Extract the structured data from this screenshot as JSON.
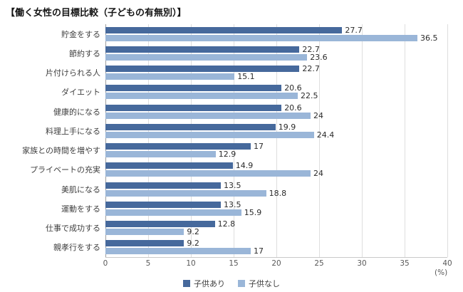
{
  "chart_data": {
    "type": "bar",
    "orientation": "horizontal",
    "title": "【働く女性の目標比較（子どもの有無別）】",
    "categories": [
      "貯金をする",
      "節約する",
      "片付けられる人",
      "ダイエット",
      "健康的になる",
      "料理上手になる",
      "家族との時間を増やす",
      "プライベートの充実",
      "美肌になる",
      "運動をする",
      "仕事で成功する",
      "親孝行をする"
    ],
    "series": [
      {
        "name": "子供あり",
        "color": "#46699c",
        "values": [
          27.7,
          22.7,
          22.7,
          20.6,
          20.6,
          19.9,
          17,
          14.9,
          13.5,
          13.5,
          12.8,
          9.2
        ]
      },
      {
        "name": "子供なし",
        "color": "#9ab6d8",
        "values": [
          36.5,
          23.6,
          15.1,
          22.5,
          24,
          24.4,
          12.9,
          24,
          18.8,
          15.9,
          9.2,
          17
        ]
      }
    ],
    "xlim": [
      0,
      40
    ],
    "xticks": [
      0,
      5,
      10,
      15,
      20,
      25,
      30,
      35,
      40
    ],
    "x_unit": "(%)",
    "xlabel": "",
    "ylabel": "",
    "grid": true,
    "legend_position": "bottom"
  }
}
